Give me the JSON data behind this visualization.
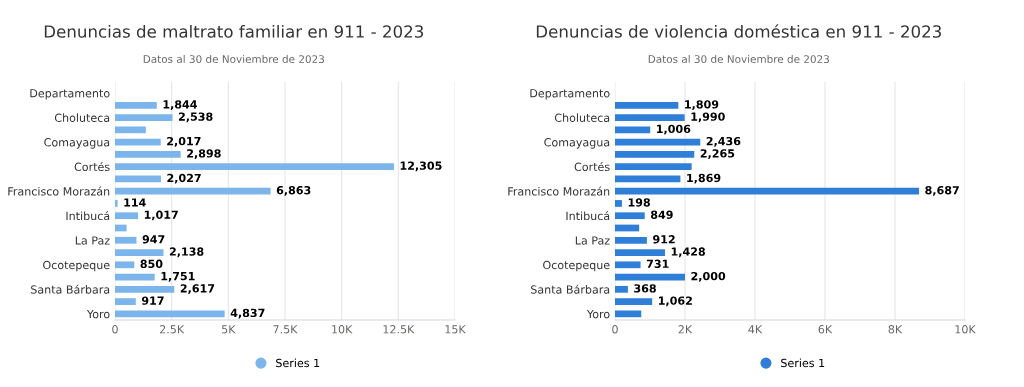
{
  "chart_data": [
    {
      "type": "bar",
      "orientation": "horizontal",
      "title": "Denuncias de maltrato familiar en 911 - 2023",
      "subtitle": "Datos al 30 de Noviembre de 2023",
      "categories": [
        "Departamento",
        null,
        "Choluteca",
        null,
        "Comayagua",
        null,
        "Cortés",
        null,
        "Francisco Morazán",
        null,
        "Intibucá",
        null,
        "La Paz",
        null,
        "Ocotepeque",
        null,
        "Santa Bárbara",
        null,
        "Yoro"
      ],
      "series": [
        {
          "name": "Series 1",
          "color": "#7cb5ec",
          "values": [
            null,
            1844,
            2538,
            1360,
            2017,
            2898,
            12305,
            2027,
            6863,
            114,
            1017,
            510,
            947,
            2138,
            850,
            1751,
            2617,
            917,
            4837
          ],
          "value_labels": [
            null,
            "1,844",
            "2,538",
            null,
            "2,017",
            "2,898",
            "12,305",
            "2,027",
            "6,863",
            "114",
            "1,017",
            null,
            "947",
            "2,138",
            "850",
            "1,751",
            "2,617",
            "917",
            "4,837"
          ]
        }
      ],
      "xlim": [
        0,
        15000
      ],
      "xticks": [
        0,
        {
          "value": 2500,
          "label": "2.5K"
        },
        {
          "value": 5000,
          "label": "5K"
        },
        {
          "value": 7500,
          "label": "7.5K"
        },
        {
          "value": 10000,
          "label": "10K"
        },
        {
          "value": 12500,
          "label": "12.5K"
        },
        {
          "value": 15000,
          "label": "15K"
        }
      ],
      "grid": "x",
      "legend": "bottom"
    },
    {
      "type": "bar",
      "orientation": "horizontal",
      "title": "Denuncias de violencia doméstica en 911 - 2023",
      "subtitle": "Datos al 30 de Noviembre de 2023",
      "categories": [
        "Departamento",
        null,
        "Choluteca",
        null,
        "Comayagua",
        null,
        "Cortés",
        null,
        "Francisco Morazán",
        null,
        "Intibucá",
        null,
        "La Paz",
        null,
        "Ocotepeque",
        null,
        "Santa Bárbara",
        null,
        "Yoro"
      ],
      "series": [
        {
          "name": "Series 1",
          "color": "#2f7ed8",
          "values": [
            null,
            1809,
            1990,
            1006,
            2436,
            2265,
            2190,
            1869,
            8687,
            198,
            849,
            690,
            912,
            1428,
            731,
            2000,
            368,
            1062,
            750
          ],
          "value_labels": [
            null,
            "1,809",
            "1,990",
            "1,006",
            "2,436",
            "2,265",
            null,
            "1,869",
            "8,687",
            "198",
            "849",
            null,
            "912",
            "1,428",
            "731",
            "2,000",
            "368",
            "1,062",
            null
          ]
        }
      ],
      "xlim": [
        0,
        10000
      ],
      "xticks": [
        0,
        {
          "value": 2000,
          "label": "2K"
        },
        {
          "value": 4000,
          "label": "4K"
        },
        {
          "value": 6000,
          "label": "6K"
        },
        {
          "value": 8000,
          "label": "8K"
        },
        {
          "value": 10000,
          "label": "10K"
        }
      ],
      "grid": "x",
      "legend": "bottom"
    }
  ]
}
